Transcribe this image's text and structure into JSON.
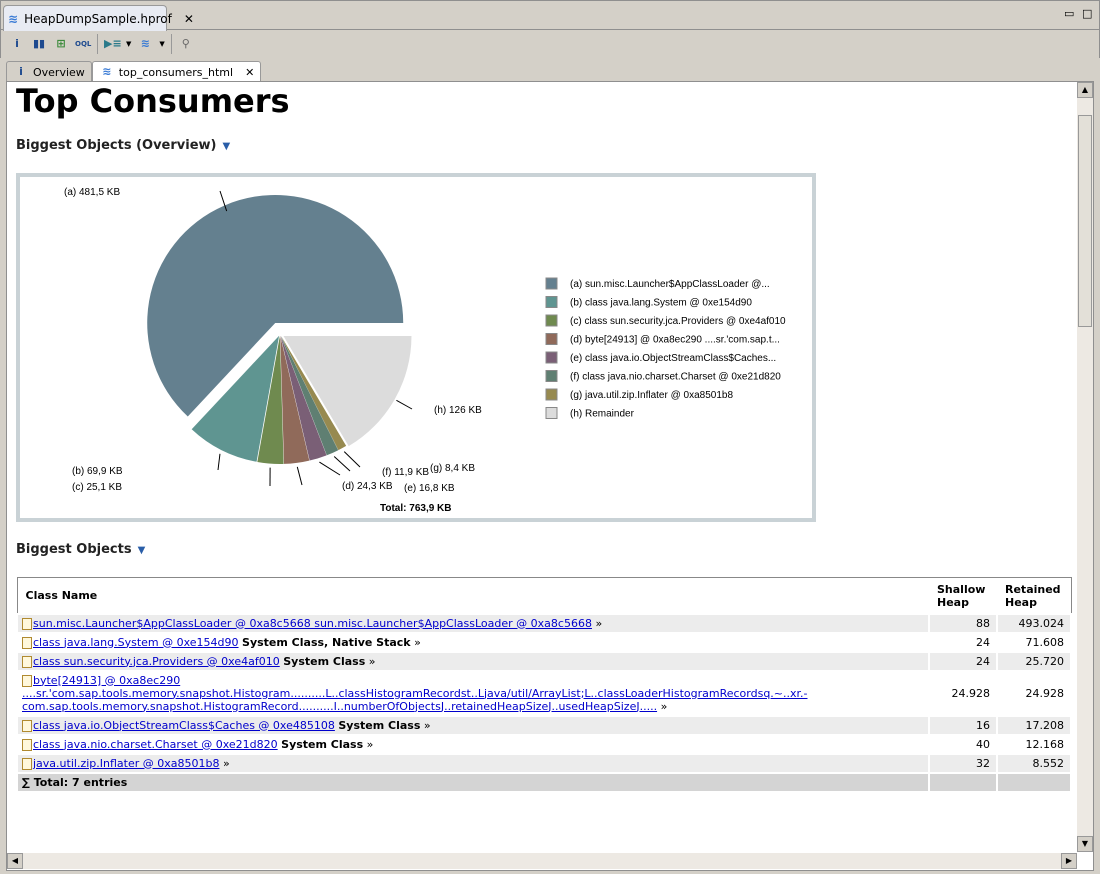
{
  "editor_tab": {
    "title": "HeapDumpSample.hprof"
  },
  "toolbar": {
    "icons": [
      "info-icon",
      "histogram-icon",
      "dominator-tree-icon",
      "oql-icon",
      "query-browser-icon",
      "heap-dump-reports-icon",
      "search-icon"
    ]
  },
  "subtabs": [
    {
      "label": "Overview"
    },
    {
      "label": "top_consumers_html"
    }
  ],
  "page": {
    "title": "Top Consumers",
    "section1": "Biggest Objects (Overview)",
    "section2": "Biggest Objects"
  },
  "chart_data": {
    "type": "pie",
    "total_label": "Total: 763,9 KB",
    "unit": "KB",
    "slices": [
      {
        "key": "(a)",
        "name": "sun.misc.Launcher$AppClassLoader @...",
        "value": 481.5,
        "label": "(a)  481,5 KB",
        "color": "#64808f"
      },
      {
        "key": "(b)",
        "name": "class java.lang.System @ 0xe154d90",
        "value": 69.9,
        "label": "(b)  69,9 KB",
        "color": "#5f9591"
      },
      {
        "key": "(c)",
        "name": "class sun.security.jca.Providers @ 0xe4af010",
        "value": 25.1,
        "label": "(c)  25,1 KB",
        "color": "#6f8a4f"
      },
      {
        "key": "(d)",
        "name": "byte[24913] @ 0xa8ec290  ....sr.'com.sap.t...",
        "value": 24.3,
        "label": "(d)  24,3 KB",
        "color": "#906a5a"
      },
      {
        "key": "(e)",
        "name": "class java.io.ObjectStreamClass$Caches...",
        "value": 16.8,
        "label": "(e)  16,8 KB",
        "color": "#7a5f76"
      },
      {
        "key": "(f)",
        "name": "class java.nio.charset.Charset @ 0xe21d820",
        "value": 11.9,
        "label": "(f)  11,9 KB",
        "color": "#5f7f72"
      },
      {
        "key": "(g)",
        "name": "java.util.zip.Inflater @ 0xa8501b8",
        "value": 8.4,
        "label": "(g)  8,4 KB",
        "color": "#978a50"
      },
      {
        "key": "(h)",
        "name": "Remainder",
        "value": 126,
        "label": "(h)  126 KB",
        "color": "#dcdcdc"
      }
    ]
  },
  "table": {
    "headers": [
      "Class Name",
      "Shallow Heap",
      "Retained Heap"
    ],
    "rows": [
      {
        "link": "sun.misc.Launcher$AppClassLoader @ 0xa8c5668 sun.misc.Launcher$AppClassLoader @ 0xa8c5668",
        "suffix": "",
        "shallow": "88",
        "retained": "493.024"
      },
      {
        "link": "class java.lang.System @ 0xe154d90",
        "suffix": "System Class, Native Stack",
        "shallow": "24",
        "retained": "71.608"
      },
      {
        "link": "class sun.security.jca.Providers @ 0xe4af010",
        "suffix": "System Class",
        "shallow": "24",
        "retained": "25.720"
      },
      {
        "link": "byte[24913] @ 0xa8ec290 ....sr.'com.sap.tools.memory.snapshot.Histogram..........L..classHistogramRecordst..Ljava/util/ArrayList;L..classLoaderHistogramRecordsq.~..xr.-com.sap.tools.memory.snapshot.HistogramRecord..........I..numberOfObjectsJ..retainedHeapSizeJ..usedHeapSizeJ.....",
        "suffix": "",
        "shallow": "24.928",
        "retained": "24.928"
      },
      {
        "link": "class java.io.ObjectStreamClass$Caches @ 0xe485108",
        "suffix": "System Class",
        "shallow": "16",
        "retained": "17.208"
      },
      {
        "link": "class java.nio.charset.Charset @ 0xe21d820",
        "suffix": "System Class",
        "shallow": "40",
        "retained": "12.168"
      },
      {
        "link": "java.util.zip.Inflater @ 0xa8501b8",
        "suffix": "",
        "shallow": "32",
        "retained": "8.552"
      }
    ],
    "total": "Total: 7 entries",
    "more": "»",
    "sigma": "∑"
  }
}
